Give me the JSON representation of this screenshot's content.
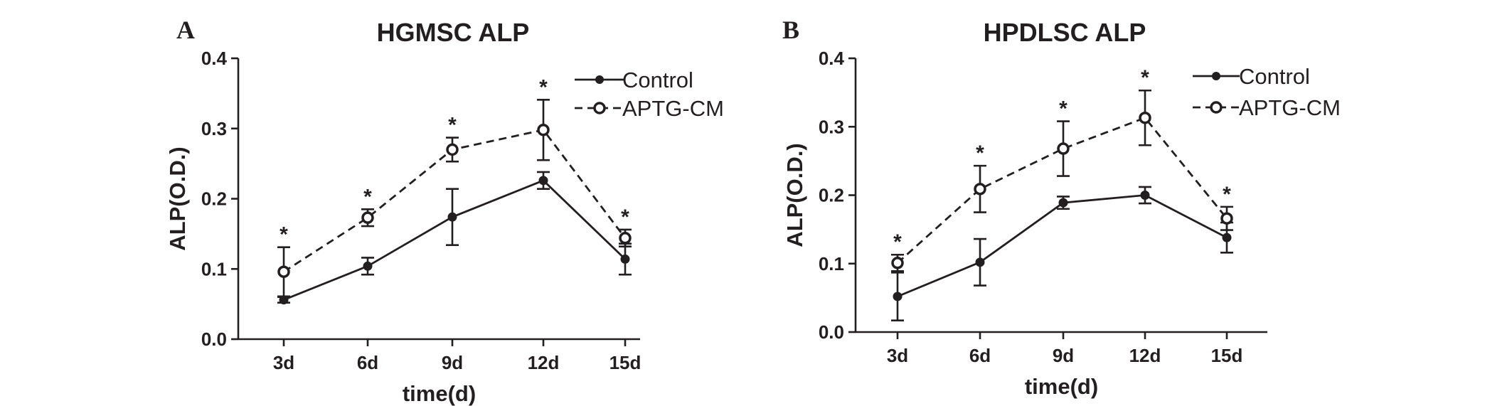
{
  "chart_data": [
    {
      "type": "line",
      "panel_label": "A",
      "title": "HGMSC  ALP",
      "xlabel": "time(d)",
      "ylabel": "ALP(O.D.)",
      "categories": [
        "3d",
        "6d",
        "9d",
        "12d",
        "15d"
      ],
      "ylim": [
        0,
        0.4
      ],
      "yticks": [
        "0.0",
        "0.1",
        "0.2",
        "0.3",
        "0.4"
      ],
      "legend_position": "top-right",
      "series": [
        {
          "name": "Control",
          "style": "solid",
          "marker": "filled-circle",
          "values": [
            0.056,
            0.104,
            0.174,
            0.226,
            0.114
          ],
          "errors": [
            0.004,
            0.012,
            0.04,
            0.012,
            0.022
          ]
        },
        {
          "name": "APTG-CM",
          "style": "dashed",
          "marker": "open-circle",
          "values": [
            0.096,
            0.173,
            0.27,
            0.298,
            0.144
          ],
          "errors": [
            0.035,
            0.012,
            0.017,
            0.043,
            0.012
          ]
        }
      ],
      "annotations": [
        "*",
        "*",
        "*",
        "*",
        "*"
      ],
      "colors": {
        "line": "#231f20"
      }
    },
    {
      "type": "line",
      "panel_label": "B",
      "title": "HPDLSC  ALP",
      "xlabel": "time(d)",
      "ylabel": "ALP(O.D.)",
      "categories": [
        "3d",
        "6d",
        "9d",
        "12d",
        "15d"
      ],
      "ylim": [
        0,
        0.4
      ],
      "yticks": [
        "0.0",
        "0.1",
        "0.2",
        "0.3",
        "0.4"
      ],
      "legend_position": "top-right",
      "series": [
        {
          "name": "Control",
          "style": "solid",
          "marker": "filled-circle",
          "values": [
            0.052,
            0.102,
            0.189,
            0.2,
            0.138
          ],
          "errors": [
            0.035,
            0.034,
            0.009,
            0.012,
            0.022
          ]
        },
        {
          "name": "APTG-CM",
          "style": "dashed",
          "marker": "open-circle",
          "values": [
            0.101,
            0.209,
            0.268,
            0.313,
            0.166
          ],
          "errors": [
            0.012,
            0.034,
            0.04,
            0.04,
            0.017
          ]
        }
      ],
      "annotations": [
        "*",
        "*",
        "*",
        "*",
        "*"
      ],
      "colors": {
        "line": "#231f20"
      }
    }
  ]
}
